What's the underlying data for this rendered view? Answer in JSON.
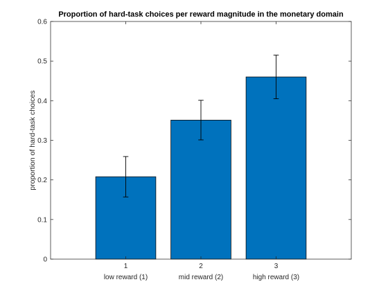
{
  "chart_data": {
    "type": "bar",
    "title": "Proportion of hard-task choices per reward magnitude in the monetary domain",
    "xlabel": "",
    "ylabel": "proportion of hard-task choices",
    "categories": [
      "1",
      "2",
      "3"
    ],
    "category_descriptions": [
      "low reward (1)",
      "mid reward (2)",
      "high reward (3)"
    ],
    "values": [
      0.208,
      0.351,
      0.46
    ],
    "error_low": [
      0.157,
      0.301,
      0.405
    ],
    "error_high": [
      0.259,
      0.401,
      0.515
    ],
    "xlim": [
      0,
      4
    ],
    "ylim": [
      0,
      0.6
    ],
    "yticks": [
      0,
      0.1,
      0.2,
      0.3,
      0.4,
      0.5,
      0.6
    ],
    "ytick_labels": [
      "0",
      "0.1",
      "0.2",
      "0.3",
      "0.4",
      "0.5",
      "0.6"
    ],
    "grid": false,
    "legend": "none",
    "bar_color": "#0072BD",
    "edge_color": "#000000"
  }
}
